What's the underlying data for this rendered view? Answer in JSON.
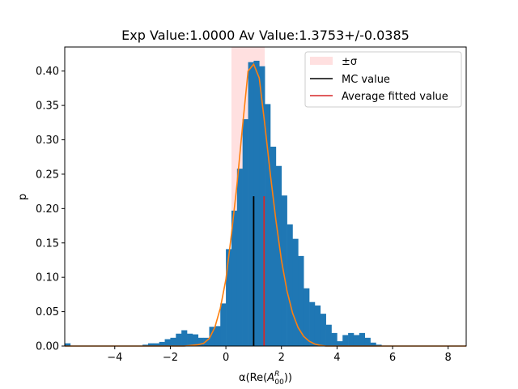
{
  "chart_data": {
    "type": "bar",
    "title": "Exp Value:1.0000 Av Value:1.3753+/-0.0385",
    "xlabel_parts": {
      "pre": "α(Re(",
      "base": "A",
      "sup": "R",
      "sub": "00",
      "post": "))"
    },
    "ylabel": "p",
    "xlim": [
      -5.8,
      8.65
    ],
    "ylim": [
      0,
      0.435
    ],
    "xticks": [
      -4,
      -2,
      0,
      2,
      4,
      6,
      8
    ],
    "xtick_labels": [
      "−4",
      "−2",
      "0",
      "2",
      "4",
      "6",
      "8"
    ],
    "yticks": [
      0.0,
      0.05,
      0.1,
      0.15,
      0.2,
      0.25,
      0.3,
      0.35,
      0.4
    ],
    "ytick_labels": [
      "0.00",
      "0.05",
      "0.10",
      "0.15",
      "0.20",
      "0.25",
      "0.30",
      "0.35",
      "0.40"
    ],
    "histogram": {
      "color": "#1f77b4",
      "bins": [
        {
          "x0": -5.8,
          "x1": -5.6,
          "p": 0.004
        },
        {
          "x0": -3.0,
          "x1": -2.8,
          "p": 0.002
        },
        {
          "x0": -2.8,
          "x1": -2.6,
          "p": 0.004
        },
        {
          "x0": -2.6,
          "x1": -2.4,
          "p": 0.004
        },
        {
          "x0": -2.4,
          "x1": -2.2,
          "p": 0.006
        },
        {
          "x0": -2.2,
          "x1": -2.0,
          "p": 0.01
        },
        {
          "x0": -2.0,
          "x1": -1.8,
          "p": 0.012
        },
        {
          "x0": -1.8,
          "x1": -1.6,
          "p": 0.018
        },
        {
          "x0": -1.6,
          "x1": -1.4,
          "p": 0.023
        },
        {
          "x0": -1.4,
          "x1": -1.2,
          "p": 0.018
        },
        {
          "x0": -1.2,
          "x1": -1.0,
          "p": 0.017
        },
        {
          "x0": -1.0,
          "x1": -0.8,
          "p": 0.012
        },
        {
          "x0": -0.8,
          "x1": -0.6,
          "p": 0.012
        },
        {
          "x0": -0.6,
          "x1": -0.4,
          "p": 0.028
        },
        {
          "x0": -0.4,
          "x1": -0.2,
          "p": 0.029
        },
        {
          "x0": -0.2,
          "x1": 0.0,
          "p": 0.062
        },
        {
          "x0": 0.0,
          "x1": 0.2,
          "p": 0.141
        },
        {
          "x0": 0.2,
          "x1": 0.4,
          "p": 0.197
        },
        {
          "x0": 0.4,
          "x1": 0.6,
          "p": 0.258
        },
        {
          "x0": 0.6,
          "x1": 0.8,
          "p": 0.33
        },
        {
          "x0": 0.8,
          "x1": 1.0,
          "p": 0.413
        },
        {
          "x0": 1.0,
          "x1": 1.2,
          "p": 0.415
        },
        {
          "x0": 1.2,
          "x1": 1.4,
          "p": 0.407
        },
        {
          "x0": 1.4,
          "x1": 1.6,
          "p": 0.352
        },
        {
          "x0": 1.6,
          "x1": 1.8,
          "p": 0.29
        },
        {
          "x0": 1.8,
          "x1": 2.0,
          "p": 0.262
        },
        {
          "x0": 2.0,
          "x1": 2.2,
          "p": 0.219
        },
        {
          "x0": 2.2,
          "x1": 2.4,
          "p": 0.177
        },
        {
          "x0": 2.4,
          "x1": 2.6,
          "p": 0.156
        },
        {
          "x0": 2.6,
          "x1": 2.8,
          "p": 0.131
        },
        {
          "x0": 2.8,
          "x1": 3.0,
          "p": 0.084
        },
        {
          "x0": 3.0,
          "x1": 3.2,
          "p": 0.064
        },
        {
          "x0": 3.2,
          "x1": 3.4,
          "p": 0.059
        },
        {
          "x0": 3.4,
          "x1": 3.6,
          "p": 0.047
        },
        {
          "x0": 3.6,
          "x1": 3.8,
          "p": 0.031
        },
        {
          "x0": 3.8,
          "x1": 4.0,
          "p": 0.019
        },
        {
          "x0": 4.0,
          "x1": 4.2,
          "p": 0.007
        },
        {
          "x0": 4.2,
          "x1": 4.4,
          "p": 0.016
        },
        {
          "x0": 4.4,
          "x1": 4.6,
          "p": 0.019
        },
        {
          "x0": 4.6,
          "x1": 4.8,
          "p": 0.016
        },
        {
          "x0": 4.8,
          "x1": 5.0,
          "p": 0.019
        },
        {
          "x0": 5.0,
          "x1": 5.2,
          "p": 0.012
        },
        {
          "x0": 5.2,
          "x1": 5.4,
          "p": 0.005
        },
        {
          "x0": 5.4,
          "x1": 5.6,
          "p": 0.002
        }
      ]
    },
    "fit_curve": {
      "color": "#ff7f0e",
      "x": [
        -5.8,
        -3.0,
        -2.0,
        -1.5,
        -1.0,
        -0.8,
        -0.6,
        -0.4,
        -0.2,
        0.0,
        0.2,
        0.4,
        0.6,
        0.8,
        1.0,
        1.2,
        1.4,
        1.6,
        1.8,
        2.0,
        2.2,
        2.4,
        2.6,
        2.8,
        3.0,
        3.2,
        3.4,
        3.6,
        3.8,
        4.0,
        5.0,
        8.65
      ],
      "y": [
        0.0,
        0.0,
        0.0,
        0.0,
        0.002,
        0.004,
        0.011,
        0.027,
        0.055,
        0.097,
        0.163,
        0.235,
        0.32,
        0.4,
        0.41,
        0.39,
        0.323,
        0.25,
        0.183,
        0.125,
        0.08,
        0.048,
        0.027,
        0.014,
        0.007,
        0.003,
        0.001,
        0.0,
        0.0,
        0.0,
        0.0,
        0.0
      ]
    },
    "sigma_band": {
      "x0": 0.2,
      "x1": 1.4,
      "color": "#ff0000",
      "alpha": 0.12,
      "label": "±σ"
    },
    "mc_value": {
      "x": 1.0,
      "y_top": 0.218,
      "color": "#000000",
      "label": "MC value"
    },
    "fitted_value": {
      "x": 1.3753,
      "y_top": 0.218,
      "color": "#d62728",
      "label": "Average fitted value"
    },
    "legend": {
      "location": "upper right",
      "entries": [
        "±σ",
        "MC value",
        "Average fitted value"
      ]
    },
    "grid": false
  }
}
